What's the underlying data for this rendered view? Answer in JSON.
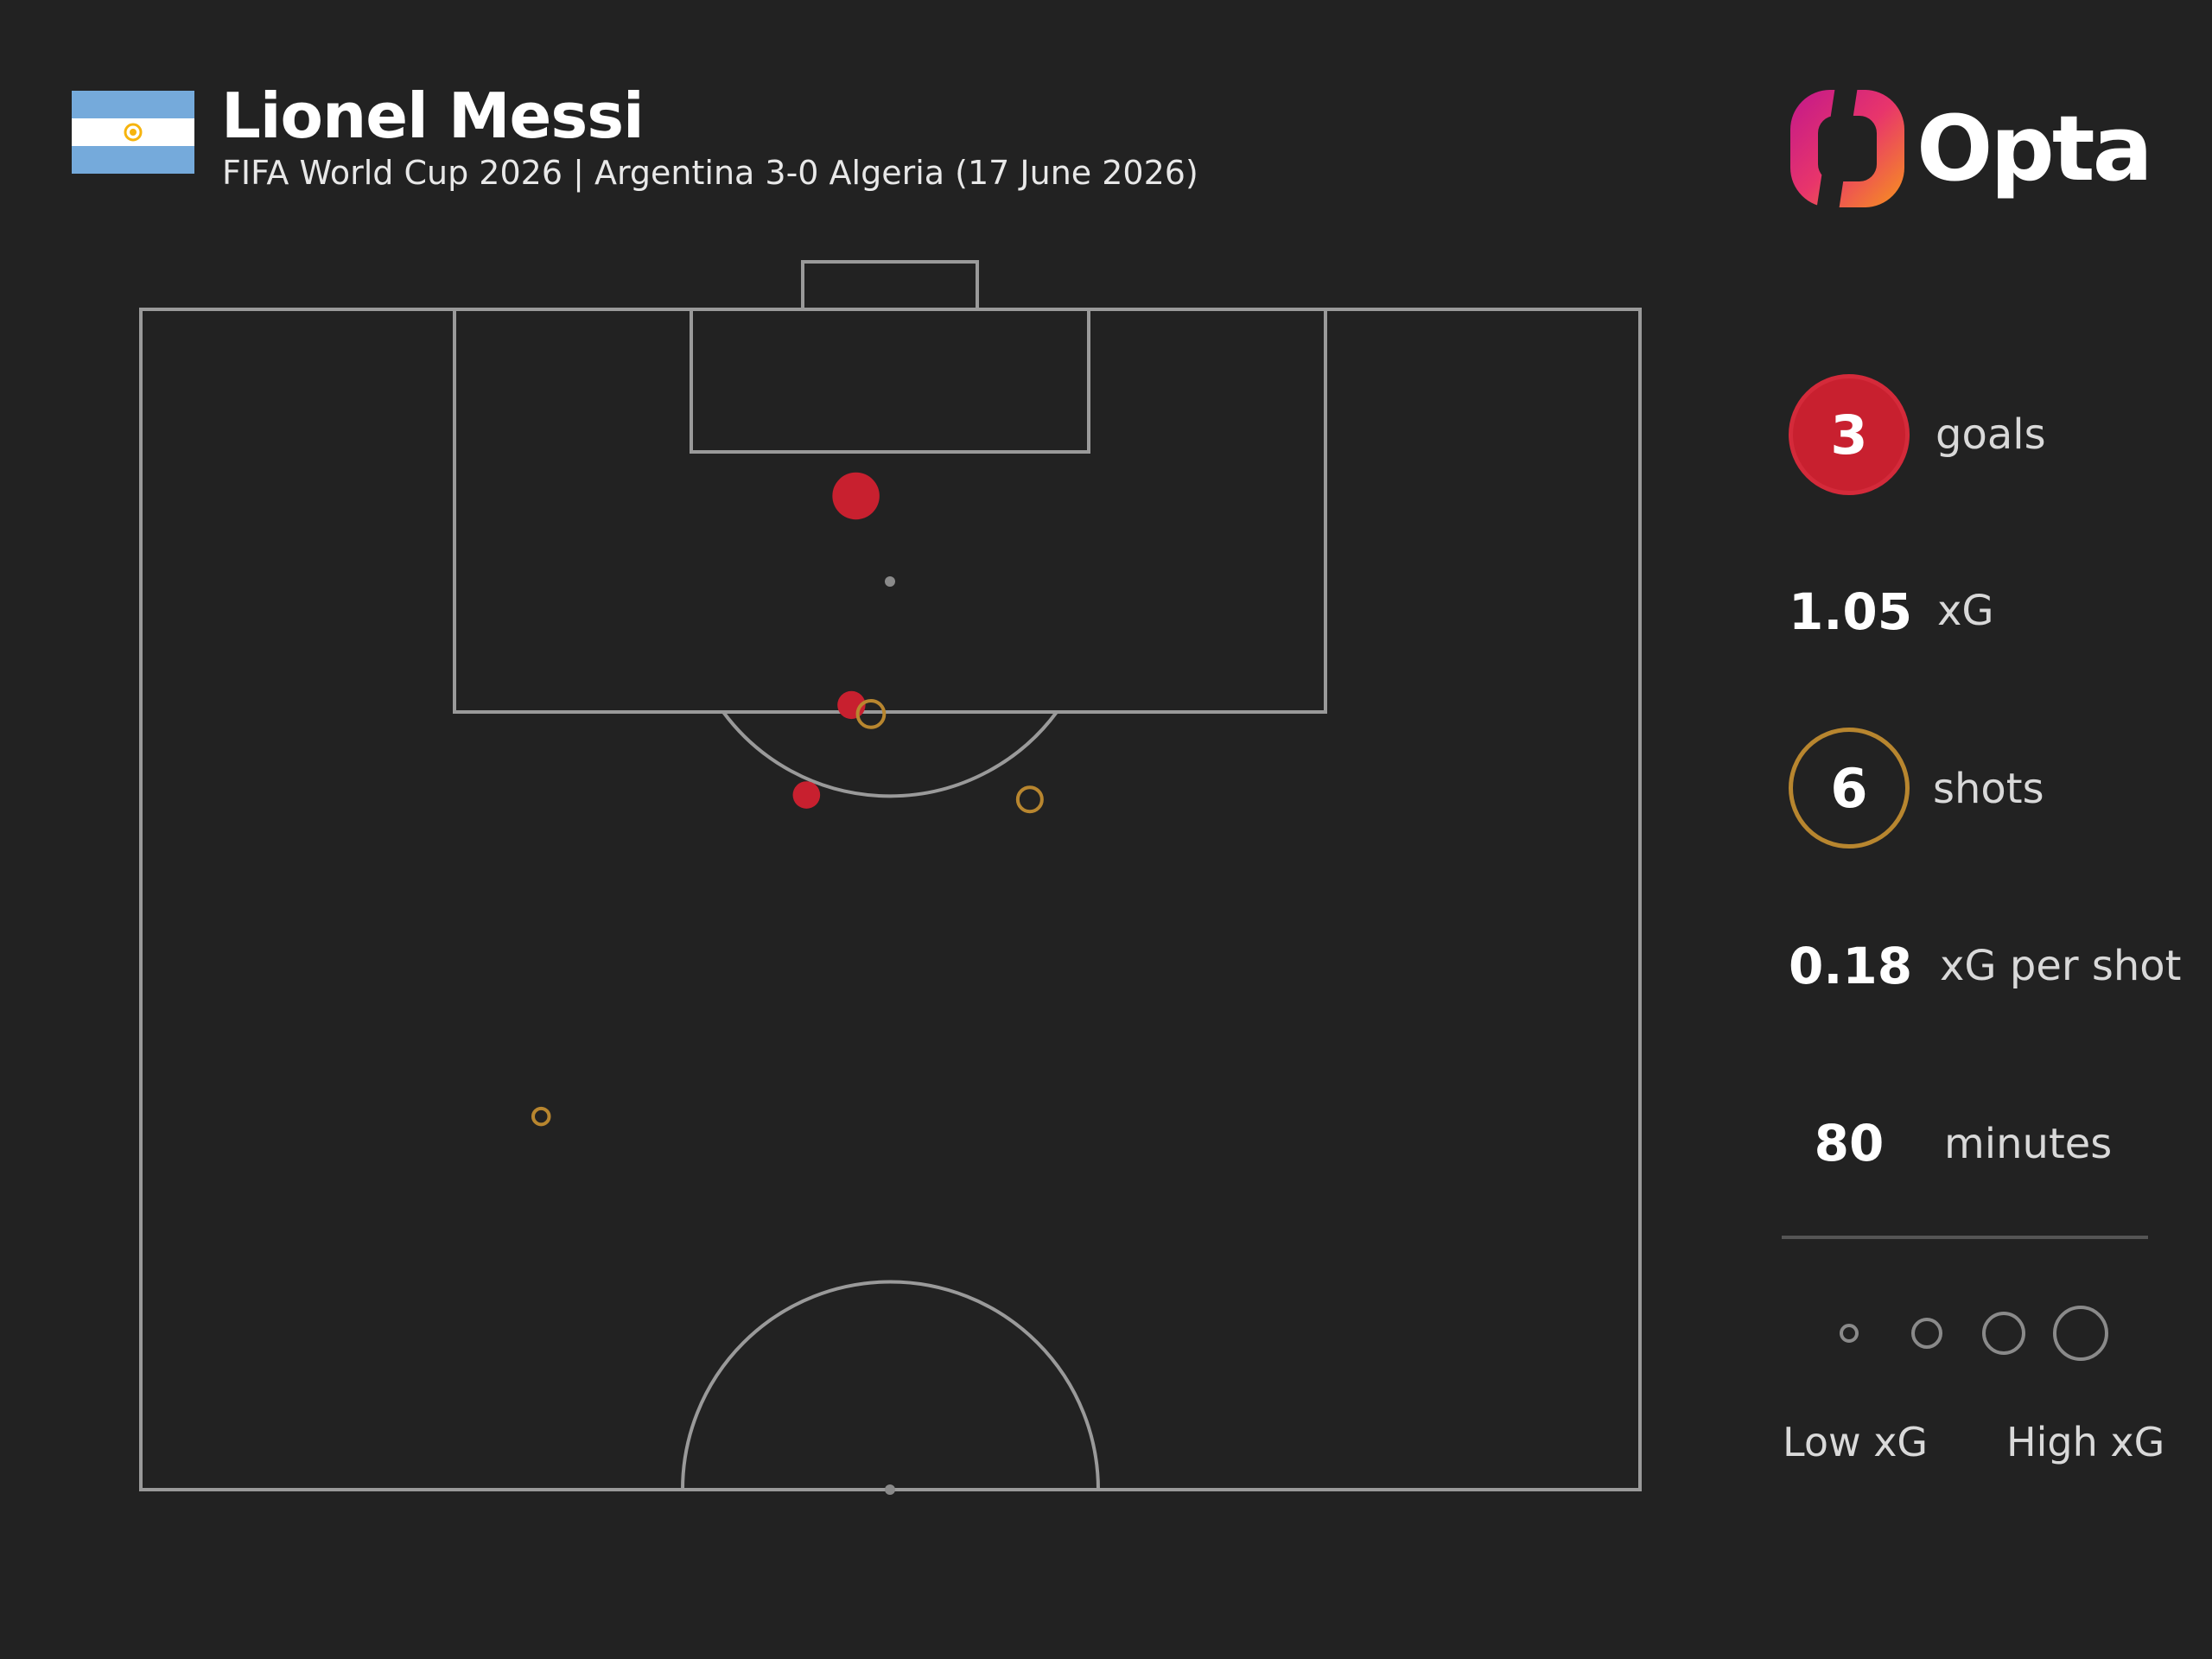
{
  "header": {
    "player": "Lionel Messi",
    "subtitle": "FIFA World Cup 2026 | Argentina 3-0 Algeria (17 June 2026)",
    "flag_icon": "argentina-flag-icon",
    "flag_colors": {
      "sky": "#75AADB",
      "white": "#FFFFFF",
      "sun": "#F6B40E"
    }
  },
  "brand": {
    "name": "Opta",
    "logo_icon": "opta-logo-icon"
  },
  "stats": {
    "goals": {
      "value": "3",
      "label": "goals"
    },
    "xg": {
      "value": "1.05",
      "label": "xG"
    },
    "shots": {
      "value": "6",
      "label": "shots"
    },
    "xg_per_shot": {
      "value": "0.18",
      "label": "xG per shot"
    },
    "minutes": {
      "value": "80",
      "label": "minutes"
    }
  },
  "legend": {
    "low": "Low xG",
    "high": "High xG",
    "sizes": [
      0.02,
      0.1,
      0.3,
      0.6
    ]
  },
  "colors": {
    "background": "#222222",
    "goal": "#C8202F",
    "miss": "#B8862F",
    "other": "#8A8A8A",
    "pitch_lines": "#9A9A9A"
  },
  "chart_data": {
    "type": "scatter",
    "description_units": "pitch coordinates: x = 0 (left touchline) to 100 (right touchline), y = metres from goal line (0) to halfway line (52.5); xG per shot",
    "grid": false,
    "xlim": [
      0,
      100
    ],
    "ylim": [
      0,
      52.5
    ],
    "series": [
      {
        "name": "goal",
        "points": [
          {
            "x": 47.7,
            "y": 8.3,
            "xg": 0.55
          },
          {
            "x": 47.4,
            "y": 17.6,
            "xg": 0.14
          },
          {
            "x": 44.4,
            "y": 21.6,
            "xg": 0.13
          }
        ]
      },
      {
        "name": "shot",
        "points": [
          {
            "x": 48.7,
            "y": 18.0,
            "xg": 0.12
          },
          {
            "x": 59.3,
            "y": 21.8,
            "xg": 0.09
          },
          {
            "x": 26.7,
            "y": 35.9,
            "xg": 0.02
          }
        ]
      }
    ]
  }
}
